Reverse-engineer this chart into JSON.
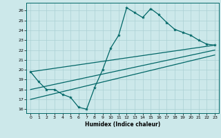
{
  "xlabel": "Humidex (Indice chaleur)",
  "bg_color": "#cce8ea",
  "grid_color": "#aad0d4",
  "line_color": "#006666",
  "xlim": [
    -0.5,
    23.5
  ],
  "ylim": [
    15.6,
    26.8
  ],
  "yticks": [
    16,
    17,
    18,
    19,
    20,
    21,
    22,
    23,
    24,
    25,
    26
  ],
  "xticks": [
    0,
    1,
    2,
    3,
    4,
    5,
    6,
    7,
    8,
    9,
    10,
    11,
    12,
    13,
    14,
    15,
    16,
    17,
    18,
    19,
    20,
    21,
    22,
    23
  ],
  "series1_x": [
    0,
    1,
    2,
    3,
    4,
    5,
    6,
    7,
    8,
    9,
    10,
    11,
    12,
    13,
    14,
    15,
    16,
    17,
    18,
    19,
    20,
    21,
    22,
    23
  ],
  "series1_y": [
    19.8,
    18.8,
    18.0,
    18.0,
    17.5,
    17.2,
    16.2,
    16.0,
    18.2,
    20.0,
    22.2,
    23.5,
    26.3,
    25.8,
    25.3,
    26.2,
    25.6,
    24.8,
    24.1,
    23.8,
    23.5,
    23.0,
    22.6,
    22.5
  ],
  "line2_x": [
    0,
    23
  ],
  "line2_y": [
    19.8,
    22.5
  ],
  "line3_x": [
    0,
    23
  ],
  "line3_y": [
    18.0,
    22.0
  ],
  "line4_x": [
    0,
    23
  ],
  "line4_y": [
    17.0,
    21.5
  ]
}
